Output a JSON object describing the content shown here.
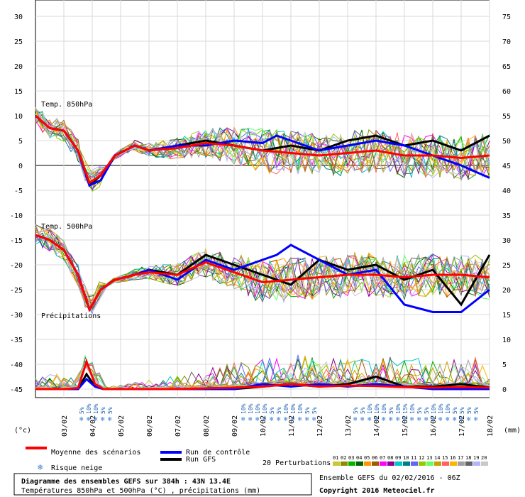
{
  "chart_data": {
    "type": "line",
    "x_dates": [
      "03/02",
      "04/02",
      "05/02",
      "06/02",
      "07/02",
      "08/02",
      "09/02",
      "10/02",
      "11/02",
      "12/02",
      "13/02",
      "14/02",
      "15/02",
      "16/02",
      "17/02",
      "18/02"
    ],
    "left_axis_ticks": [
      "30",
      "25",
      "20",
      "15",
      "10",
      "5",
      "0",
      "-5",
      "-10",
      "-15",
      "-20",
      "-25",
      "-30",
      "-35",
      "-40",
      "-45"
    ],
    "right_axis_ticks": [
      "75",
      "70",
      "65",
      "60",
      "55",
      "50",
      "45",
      "40",
      "35",
      "30",
      "25",
      "20",
      "15",
      "10",
      "5",
      "0"
    ],
    "left_unit": "(°c)",
    "right_unit": "(mm)",
    "panel_labels": {
      "t850": "Temp. 850hPa",
      "t500": "Temp. 500hPa",
      "precip": "Précipitations"
    },
    "snow_risk": [
      {
        "day": 3.6,
        "labels": [
          "5%",
          "10%",
          "10%",
          "5%",
          "5%"
        ]
      },
      {
        "day": 9.3,
        "labels": [
          "10%",
          "10%",
          "10%",
          "10%",
          "5%",
          "5%",
          "10%",
          "10%",
          "10%",
          "5%",
          "5%"
        ]
      },
      {
        "day": 13.25,
        "labels": [
          "5%",
          "5%",
          "10%",
          "10%",
          "10%",
          "5%",
          "10%",
          "15%",
          "10%",
          "5%",
          "5%",
          "10%",
          "10%",
          "10%",
          "5%",
          "5%",
          "5%",
          "5%"
        ]
      }
    ],
    "series": [
      {
        "name": "Moyenne des scénarios",
        "color": "#ff0000",
        "t850": [
          [
            2,
            10
          ],
          [
            2.5,
            7.5
          ],
          [
            3,
            7
          ],
          [
            3.5,
            3
          ],
          [
            3.9,
            -3.5
          ],
          [
            4.3,
            -2
          ],
          [
            4.8,
            2
          ],
          [
            5.5,
            4
          ],
          [
            6,
            3
          ],
          [
            7,
            3.5
          ],
          [
            8,
            4.5
          ],
          [
            9,
            4
          ],
          [
            10,
            3
          ],
          [
            11,
            2.5
          ],
          [
            12,
            2
          ],
          [
            13,
            2.5
          ],
          [
            14,
            3
          ],
          [
            15,
            2
          ],
          [
            16,
            2
          ],
          [
            17,
            1.5
          ],
          [
            18,
            2
          ]
        ],
        "t500": [
          [
            2,
            -14
          ],
          [
            2.5,
            -15
          ],
          [
            3,
            -17
          ],
          [
            3.5,
            -22
          ],
          [
            3.9,
            -29
          ],
          [
            4.3,
            -25
          ],
          [
            4.8,
            -23
          ],
          [
            5.5,
            -22
          ],
          [
            6,
            -21.5
          ],
          [
            7,
            -22
          ],
          [
            8,
            -19.5
          ],
          [
            9,
            -21.5
          ],
          [
            10,
            -23.5
          ],
          [
            11,
            -23
          ],
          [
            12,
            -22.5
          ],
          [
            13,
            -22
          ],
          [
            14,
            -22
          ],
          [
            15,
            -22.5
          ],
          [
            16,
            -22
          ],
          [
            17,
            -22
          ],
          [
            18,
            -22.5
          ]
        ],
        "precip": [
          [
            2,
            0
          ],
          [
            3,
            0
          ],
          [
            3.5,
            0.2
          ],
          [
            3.8,
            5.5
          ],
          [
            4.1,
            1
          ],
          [
            4.4,
            0
          ],
          [
            7,
            0
          ],
          [
            9,
            0.3
          ],
          [
            10,
            0.5
          ],
          [
            11,
            1
          ],
          [
            12,
            0.5
          ],
          [
            13,
            0.7
          ],
          [
            14,
            0.6
          ],
          [
            15,
            0.4
          ],
          [
            16,
            0.3
          ],
          [
            17,
            0.4
          ],
          [
            18,
            0.3
          ]
        ]
      },
      {
        "name": "Run de contrôle",
        "color": "#0000ff",
        "t850": [
          [
            2,
            10
          ],
          [
            2.5,
            7.5
          ],
          [
            3,
            7
          ],
          [
            3.5,
            3
          ],
          [
            3.9,
            -4
          ],
          [
            4.3,
            -3
          ],
          [
            4.8,
            2
          ],
          [
            5.5,
            4
          ],
          [
            6,
            3
          ],
          [
            7,
            4
          ],
          [
            8,
            4
          ],
          [
            9,
            5
          ],
          [
            10,
            4.5
          ],
          [
            10.5,
            6
          ],
          [
            11,
            5
          ],
          [
            12,
            3
          ],
          [
            13,
            4
          ],
          [
            14,
            5
          ],
          [
            15,
            4
          ],
          [
            16,
            2
          ],
          [
            17,
            0
          ],
          [
            18,
            -2.5
          ]
        ],
        "t500": [
          [
            2,
            -14
          ],
          [
            2.5,
            -15
          ],
          [
            3,
            -17
          ],
          [
            3.5,
            -22
          ],
          [
            3.9,
            -29
          ],
          [
            4.3,
            -25
          ],
          [
            4.8,
            -23
          ],
          [
            5.5,
            -22
          ],
          [
            6,
            -21
          ],
          [
            7,
            -23
          ],
          [
            8,
            -19
          ],
          [
            9,
            -21
          ],
          [
            10,
            -19
          ],
          [
            10.5,
            -18
          ],
          [
            11,
            -16
          ],
          [
            12,
            -19
          ],
          [
            13,
            -22
          ],
          [
            14,
            -21
          ],
          [
            15,
            -28
          ],
          [
            16,
            -29.5
          ],
          [
            17,
            -29.5
          ],
          [
            18,
            -25
          ]
        ],
        "precip": [
          [
            2,
            0
          ],
          [
            3,
            0
          ],
          [
            3.5,
            0
          ],
          [
            3.8,
            2
          ],
          [
            4.1,
            0.5
          ],
          [
            4.4,
            0
          ],
          [
            9,
            0
          ],
          [
            10,
            1
          ],
          [
            11,
            0.5
          ],
          [
            12,
            1
          ],
          [
            13,
            0.5
          ],
          [
            14,
            1
          ],
          [
            15,
            0.5
          ],
          [
            16,
            0
          ],
          [
            17,
            0
          ],
          [
            18,
            0
          ]
        ]
      },
      {
        "name": "Run GFS",
        "color": "#000000",
        "t850": [
          [
            2,
            10
          ],
          [
            2.5,
            7.5
          ],
          [
            3,
            7
          ],
          [
            3.5,
            3
          ],
          [
            3.9,
            -4
          ],
          [
            4.3,
            -2
          ],
          [
            4.8,
            2
          ],
          [
            5.5,
            4
          ],
          [
            6,
            3
          ],
          [
            7,
            4
          ],
          [
            8,
            5
          ],
          [
            9,
            4
          ],
          [
            10,
            3
          ],
          [
            11,
            4
          ],
          [
            12,
            3
          ],
          [
            13,
            5
          ],
          [
            14,
            6
          ],
          [
            15,
            4
          ],
          [
            16,
            5
          ],
          [
            17,
            3
          ],
          [
            18,
            6
          ]
        ],
        "t500": [
          [
            2,
            -14
          ],
          [
            2.5,
            -15
          ],
          [
            3,
            -17
          ],
          [
            3.5,
            -22
          ],
          [
            3.9,
            -29
          ],
          [
            4.3,
            -25
          ],
          [
            4.8,
            -23
          ],
          [
            5.5,
            -22
          ],
          [
            6,
            -21
          ],
          [
            7,
            -22
          ],
          [
            8,
            -18
          ],
          [
            9,
            -20
          ],
          [
            10,
            -22
          ],
          [
            11,
            -24
          ],
          [
            12,
            -19
          ],
          [
            13,
            -21
          ],
          [
            14,
            -20
          ],
          [
            15,
            -23
          ],
          [
            16,
            -21
          ],
          [
            17,
            -28
          ],
          [
            18,
            -18
          ]
        ],
        "precip": [
          [
            2,
            0
          ],
          [
            3,
            0
          ],
          [
            3.5,
            0
          ],
          [
            3.8,
            3
          ],
          [
            4.1,
            0.5
          ],
          [
            4.4,
            0
          ],
          [
            9,
            0
          ],
          [
            10,
            0.5
          ],
          [
            11,
            1
          ],
          [
            12,
            0.5
          ],
          [
            13,
            1
          ],
          [
            14,
            2.5
          ],
          [
            15,
            0.5
          ],
          [
            16,
            0.5
          ],
          [
            17,
            1
          ],
          [
            18,
            0.3
          ]
        ]
      }
    ],
    "perturbation_colors": [
      "#c8c832",
      "#8c8c00",
      "#00b400",
      "#006400",
      "#ff9600",
      "#a05a00",
      "#ff00ff",
      "#8c008c",
      "#00c8c8",
      "#008080",
      "#6464ff",
      "#96c800",
      "#64ff64",
      "#c8a000",
      "#ff6464",
      "#ffb400",
      "#a0a0a0",
      "#646464",
      "#b4b4ff",
      "#c8c8c8"
    ]
  },
  "legend": {
    "mean_label": "Moyenne des scénarios",
    "control_label": "Run de contrôle",
    "gfs_label": "Run GFS",
    "snow_label": "Risque neige",
    "perturbations_label": "20 Perturbations",
    "perturbation_numbers": [
      "01",
      "02",
      "03",
      "04",
      "05",
      "06",
      "07",
      "08",
      "09",
      "10",
      "11",
      "12",
      "13",
      "14",
      "15",
      "16",
      "17",
      "18",
      "19",
      "20"
    ]
  },
  "footer": {
    "title": "Diagramme des ensembles GEFS sur 384h : 43N 13.4E",
    "subtitle": "Températures 850hPa et 500hPa (°C) , précipitations (mm)",
    "run_info": "Ensemble GEFS du 02/02/2016 - 06Z",
    "copyright": "Copyright 2016 Meteociel.fr"
  }
}
